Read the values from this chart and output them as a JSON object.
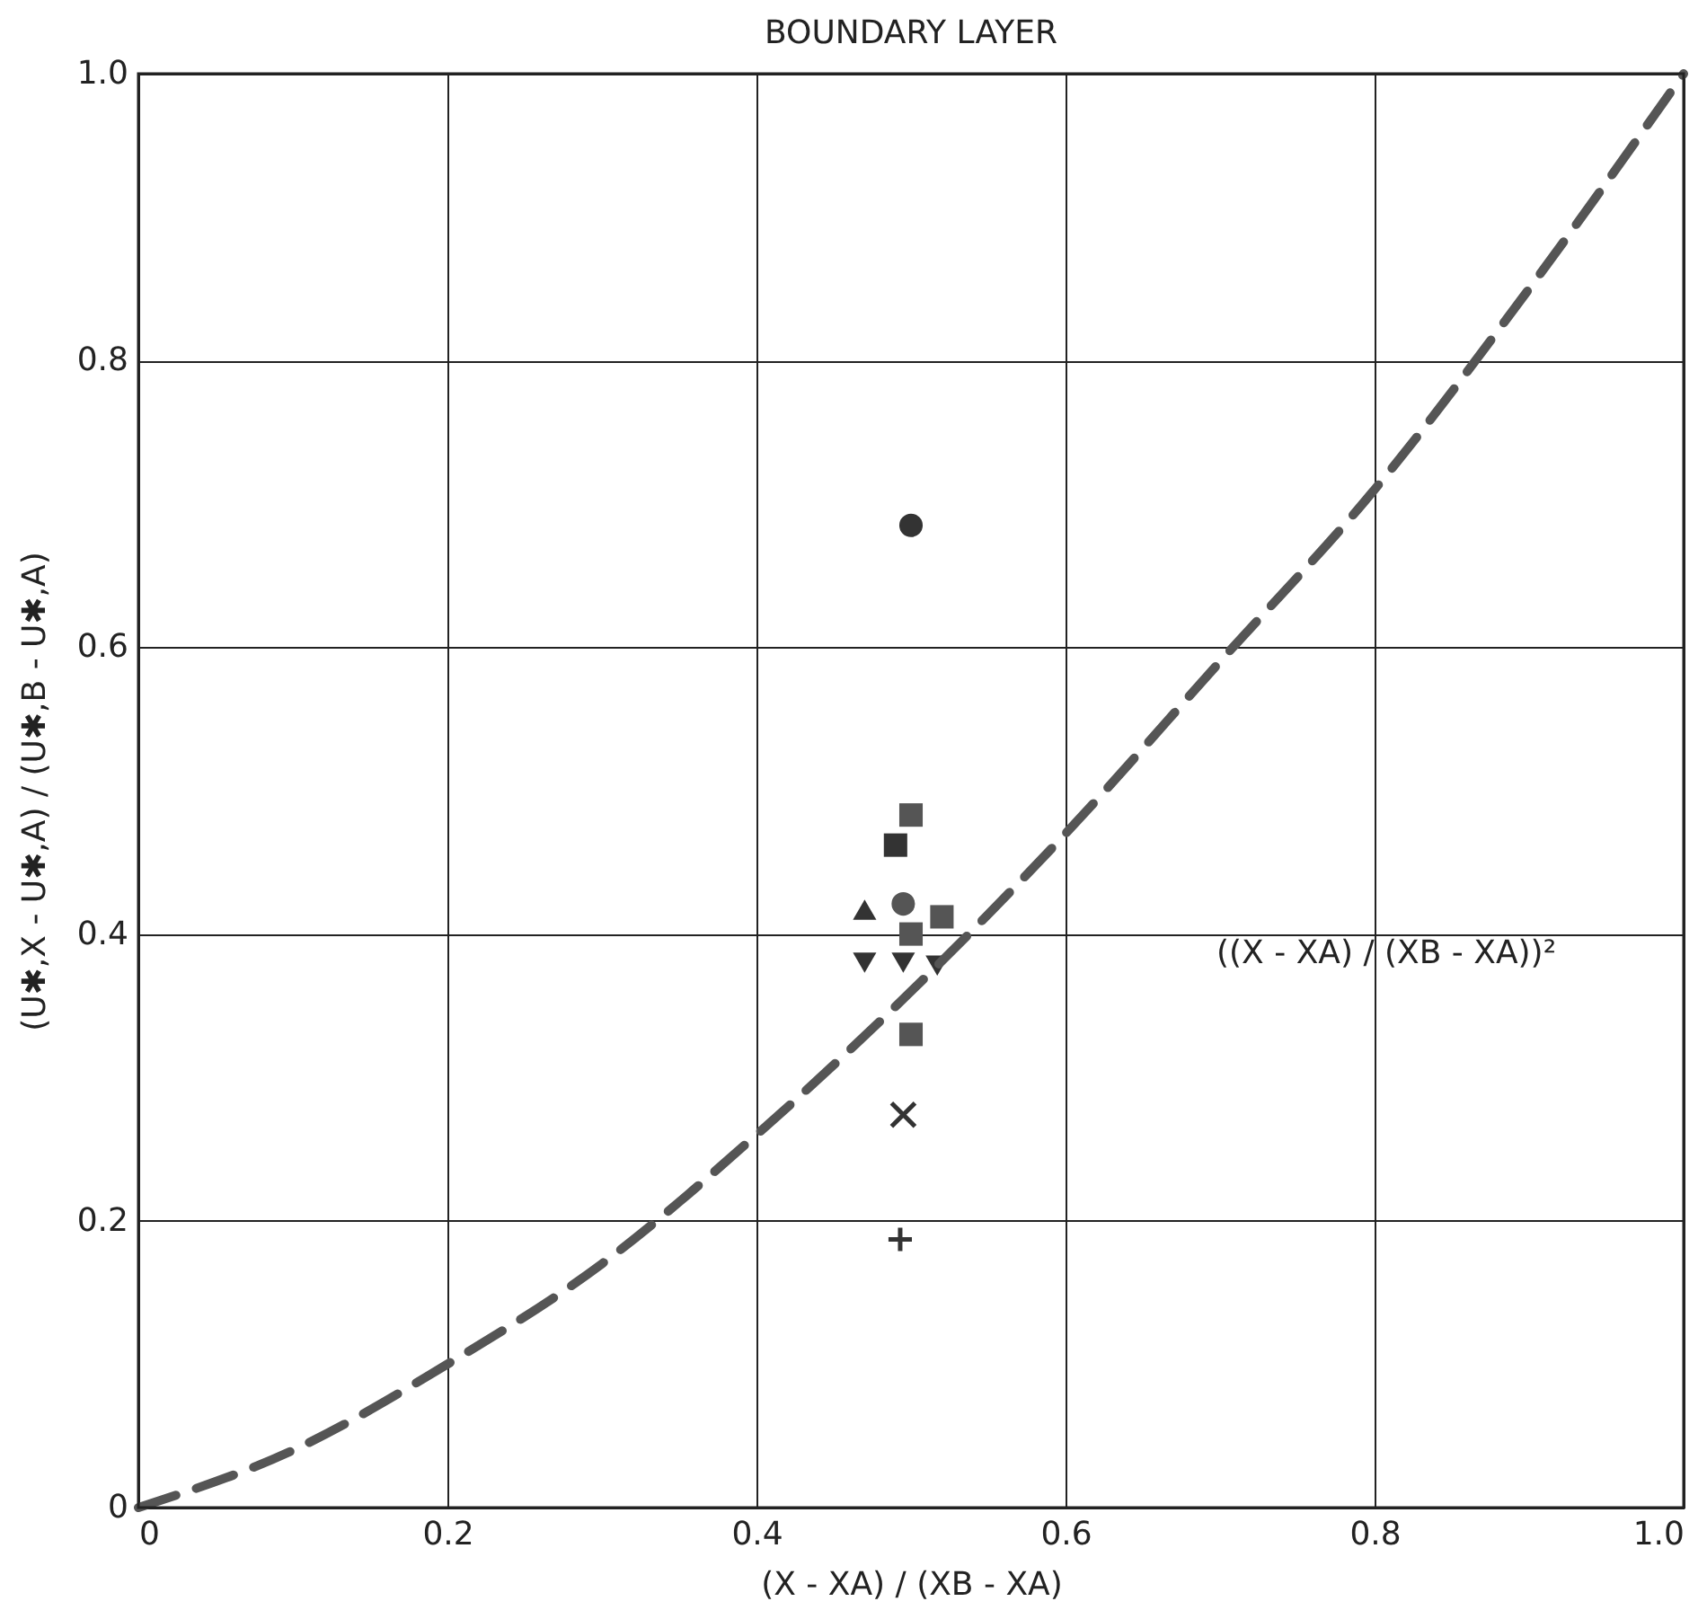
{
  "chart_data": {
    "type": "scatter",
    "title": "BOUNDARY LAYER",
    "xlabel": "(X - XA) / (XB - XA)",
    "ylabel": "(U✱,X - U✱,A) / (U✱,B - U✱,A)",
    "xlim": [
      0,
      1.0
    ],
    "ylim": [
      0,
      1.0
    ],
    "xticks": [
      {
        "value": 0,
        "label": "0"
      },
      {
        "value": 0.2,
        "label": "0.2"
      },
      {
        "value": 0.4,
        "label": "0.4"
      },
      {
        "value": 0.6,
        "label": "0.6"
      },
      {
        "value": 0.8,
        "label": "0.8"
      },
      {
        "value": 1.0,
        "label": "1.0"
      }
    ],
    "yticks": [
      {
        "value": 0,
        "label": "0"
      },
      {
        "value": 0.2,
        "label": "0.2"
      },
      {
        "value": 0.4,
        "label": "0.4"
      },
      {
        "value": 0.6,
        "label": "0.6"
      },
      {
        "value": 0.8,
        "label": "0.8"
      },
      {
        "value": 1.0,
        "label": "1.0"
      }
    ],
    "grid": true,
    "series": [
      {
        "marker": "circle",
        "color": "#333333",
        "x": [
          0.5
        ],
        "values": [
          0.685
        ]
      },
      {
        "marker": "square",
        "color": "#555555",
        "x": [
          0.5,
          0.52,
          0.5,
          0.5
        ],
        "values": [
          0.483,
          0.412,
          0.4,
          0.33
        ]
      },
      {
        "marker": "square",
        "color": "#333333",
        "x": [
          0.49
        ],
        "values": [
          0.462
        ]
      },
      {
        "marker": "triangle",
        "color": "#333333",
        "x": [
          0.47
        ],
        "values": [
          0.417
        ]
      },
      {
        "marker": "circle",
        "color": "#555555",
        "x": [
          0.495
        ],
        "values": [
          0.421
        ]
      },
      {
        "marker": "triangle-down",
        "color": "#333333",
        "x": [
          0.47,
          0.495,
          0.517
        ],
        "values": [
          0.38,
          0.38,
          0.378
        ]
      },
      {
        "marker": "x",
        "color": "#333333",
        "x": [
          0.495
        ],
        "values": [
          0.274
        ]
      },
      {
        "marker": "cross",
        "color": "#333333",
        "x": [
          0.493
        ],
        "values": [
          0.187
        ]
      },
      {
        "type": "line",
        "line_style": "dashed",
        "color": "#555555",
        "x": [
          0,
          0.1,
          0.2,
          0.3,
          0.4,
          0.5,
          0.6,
          0.7,
          0.8,
          0.9,
          1.0
        ],
        "values": [
          0,
          0.04,
          0.1,
          0.17,
          0.26,
          0.36,
          0.47,
          0.59,
          0.71,
          0.85,
          1.0
        ]
      }
    ],
    "annotations": [
      "((X - XA) / (XB - XA))²"
    ]
  }
}
